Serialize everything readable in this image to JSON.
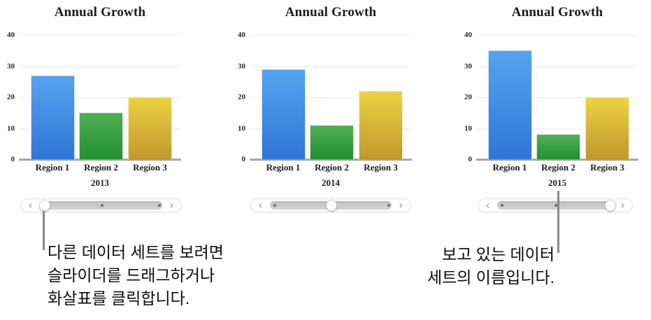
{
  "icons": {
    "chevron_left": "‹",
    "chevron_right": "›"
  },
  "colors": {
    "bars": [
      {
        "name": "Region 1",
        "top": "#55a3ef",
        "bottom": "#3076d7"
      },
      {
        "name": "Region 2",
        "top": "#4fb054",
        "bottom": "#21902f"
      },
      {
        "name": "Region 3",
        "top": "#edd242",
        "bottom": "#c0982d"
      }
    ],
    "grid_line": "#ebebeb",
    "axis_line": "#a6a6a6",
    "callout_line": "#8a8a8a"
  },
  "chart_data": [
    {
      "type": "bar",
      "title": "Annual Growth",
      "dataset_label": "2013",
      "categories": [
        "Region 1",
        "Region 2",
        "Region 3"
      ],
      "values": [
        27,
        15,
        20
      ],
      "ylim": [
        0,
        40
      ],
      "y_ticks": [
        0,
        10,
        20,
        30,
        40
      ],
      "grid": true,
      "legend": false
    },
    {
      "type": "bar",
      "title": "Annual Growth",
      "dataset_label": "2014",
      "categories": [
        "Region 1",
        "Region 2",
        "Region 3"
      ],
      "values": [
        29,
        11,
        22
      ],
      "ylim": [
        0,
        40
      ],
      "y_ticks": [
        0,
        10,
        20,
        30,
        40
      ],
      "grid": true,
      "legend": false
    },
    {
      "type": "bar",
      "title": "Annual Growth",
      "dataset_label": "2015",
      "categories": [
        "Region 1",
        "Region 2",
        "Region 3"
      ],
      "values": [
        35,
        8,
        20
      ],
      "ylim": [
        0,
        40
      ],
      "y_ticks": [
        0,
        10,
        20,
        30,
        40
      ],
      "grid": true,
      "legend": false
    }
  ],
  "sliders": [
    {
      "thumb_position": 0,
      "dot_positions": [
        0.5,
        1
      ]
    },
    {
      "thumb_position": 0.5,
      "dot_positions": [
        0,
        1
      ]
    },
    {
      "thumb_position": 1,
      "dot_positions": [
        0,
        0.5
      ]
    }
  ],
  "callouts": {
    "slider_note": {
      "lines": [
        "다른 데이터 세트를 보려면",
        "슬라이더를 드래그하거나",
        "화살표를 클릭합니다."
      ]
    },
    "dataset_name_note": {
      "lines": [
        "보고 있는 데이터",
        "세트의 이름입니다."
      ]
    }
  }
}
